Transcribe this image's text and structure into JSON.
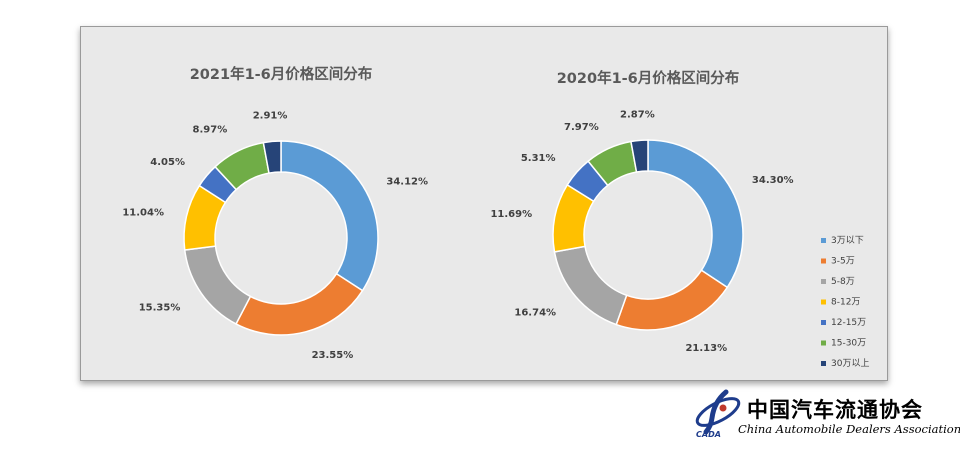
{
  "chart_data": [
    {
      "type": "pie",
      "title": "2021年1-6月价格区间分布",
      "categories": [
        "3万以下",
        "3-5万",
        "5-8万",
        "8-12万",
        "12-15万",
        "15-30万",
        "30万以上"
      ],
      "values": [
        34.12,
        23.55,
        15.35,
        11.04,
        4.05,
        8.97,
        2.91
      ],
      "labels": [
        "34.12%",
        "23.55%",
        "15.35%",
        "11.04%",
        "4.05%",
        "8.97%",
        "2.91%"
      ],
      "donut": true
    },
    {
      "type": "pie",
      "title": "2020年1-6月价格区间分布",
      "categories": [
        "3万以下",
        "3-5万",
        "5-8万",
        "8-12万",
        "12-15万",
        "15-30万",
        "30万以上"
      ],
      "values": [
        34.3,
        21.13,
        16.74,
        11.69,
        5.31,
        7.97,
        2.87
      ],
      "labels": [
        "34.30%",
        "21.13%",
        "16.74%",
        "11.69%",
        "5.31%",
        "7.97%",
        "2.87%"
      ],
      "donut": true
    }
  ],
  "legend": {
    "placement": "right",
    "items": [
      "3万以下",
      "3-5万",
      "5-8万",
      "8-12万",
      "12-15万",
      "15-30万",
      "30万以上"
    ]
  },
  "colors": [
    "#5b9bd5",
    "#ed7d31",
    "#a5a5a5",
    "#ffc000",
    "#4472c4",
    "#70ad47",
    "#264478"
  ],
  "logo": {
    "chinese_name": "中国汽车流通协会",
    "english_name": "China Automobile Dealers Association",
    "abbr": "CADA"
  }
}
